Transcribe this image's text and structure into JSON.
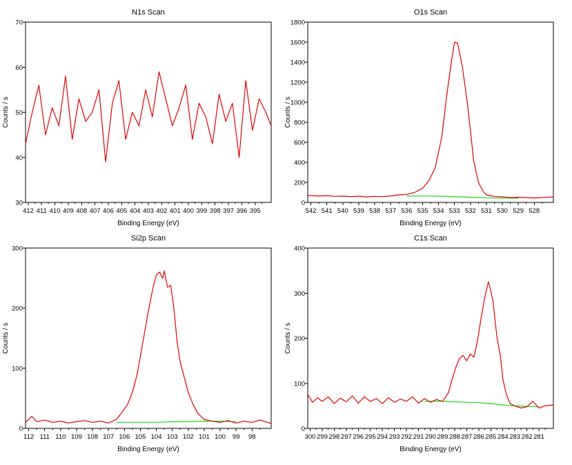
{
  "figure": {
    "panel_count": 4
  },
  "colors": {
    "data": "#e00000",
    "background": "#19d619",
    "axis": "#000000"
  },
  "chart_data": [
    {
      "type": "line",
      "title": "N1s Scan",
      "xlabel": "Binding Energy (eV)",
      "ylabel": "Counts / s",
      "xlim": [
        412.2,
        393.8
      ],
      "ylim": [
        30,
        70
      ],
      "xticks": [
        412,
        411,
        410,
        409,
        408,
        407,
        406,
        405,
        404,
        403,
        402,
        401,
        400,
        399,
        398,
        397,
        396,
        395
      ],
      "yticks": [
        30,
        40,
        50,
        60,
        70
      ],
      "series": [
        {
          "name": "data",
          "color": "#e00000",
          "x": [
            412.2,
            411.7,
            411.2,
            410.7,
            410.2,
            409.7,
            409.2,
            408.7,
            408.2,
            407.7,
            407.2,
            406.7,
            406.2,
            405.7,
            405.2,
            404.7,
            404.2,
            403.7,
            403.2,
            402.7,
            402.2,
            401.7,
            401.2,
            400.7,
            400.2,
            399.7,
            399.2,
            398.7,
            398.2,
            397.7,
            397.2,
            396.7,
            396.2,
            395.7,
            395.2,
            394.7,
            394.2,
            393.8
          ],
          "y": [
            43,
            50,
            56,
            45,
            51,
            47,
            58,
            44,
            53,
            48,
            50,
            55,
            39,
            52,
            57,
            44,
            50,
            47,
            55,
            49,
            59,
            53,
            47,
            51,
            56,
            44,
            52,
            49,
            43,
            54,
            48,
            52,
            40,
            57,
            46,
            53,
            50,
            47
          ]
        }
      ]
    },
    {
      "type": "line",
      "title": "O1s Scan",
      "xlabel": "Binding Energy (eV)",
      "ylabel": "Counts / s",
      "xlim": [
        542.2,
        526.8
      ],
      "ylim": [
        0,
        1800
      ],
      "xticks": [
        542,
        541,
        540,
        539,
        538,
        537,
        536,
        535,
        534,
        533,
        532,
        531,
        530,
        529,
        528
      ],
      "yticks": [
        0,
        200,
        400,
        600,
        800,
        1000,
        1200,
        1400,
        1600,
        1800
      ],
      "series": [
        {
          "name": "data",
          "color": "#e00000",
          "x": [
            542.2,
            541.5,
            541.0,
            540.5,
            540.0,
            539.5,
            539.0,
            538.5,
            538.0,
            537.5,
            537.0,
            536.5,
            536.0,
            535.5,
            535.0,
            534.6,
            534.2,
            533.8,
            533.5,
            533.2,
            533.0,
            532.8,
            532.5,
            532.2,
            532.0,
            531.8,
            531.5,
            531.2,
            531.0,
            530.5,
            530.0,
            529.5,
            529.0,
            528.5,
            528.0,
            527.5,
            526.8
          ],
          "y": [
            70,
            65,
            68,
            60,
            63,
            58,
            62,
            55,
            60,
            57,
            65,
            75,
            80,
            100,
            140,
            220,
            350,
            650,
            1050,
            1400,
            1600,
            1590,
            1350,
            1000,
            720,
            420,
            200,
            110,
            75,
            60,
            55,
            50,
            52,
            48,
            45,
            50,
            55
          ]
        },
        {
          "name": "background",
          "color": "#19d619",
          "x": [
            536.0,
            535.0,
            534.0,
            533.0,
            532.0,
            531.0,
            530.0,
            529.0
          ],
          "y": [
            65,
            64,
            62,
            58,
            52,
            46,
            43,
            42
          ]
        }
      ]
    },
    {
      "type": "line",
      "title": "Si2p Scan",
      "xlabel": "Binding Energy (eV)",
      "ylabel": "Counts / s",
      "xlim": [
        112.2,
        96.8
      ],
      "ylim": [
        0,
        300
      ],
      "xticks": [
        112,
        111,
        110,
        109,
        108,
        107,
        106,
        105,
        104,
        103,
        102,
        101,
        100,
        99,
        98
      ],
      "yticks": [
        0,
        100,
        200,
        300
      ],
      "series": [
        {
          "name": "data",
          "color": "#e00000",
          "x": [
            112.2,
            111.8,
            111.5,
            111.0,
            110.5,
            110.0,
            109.5,
            109.0,
            108.5,
            108.0,
            107.5,
            107.0,
            106.5,
            106.2,
            105.8,
            105.5,
            105.2,
            105.0,
            104.8,
            104.5,
            104.2,
            104.0,
            103.8,
            103.6,
            103.5,
            103.3,
            103.1,
            102.9,
            102.7,
            102.5,
            102.2,
            102.0,
            101.7,
            101.4,
            101.0,
            100.5,
            100.0,
            99.5,
            99.0,
            98.5,
            98.0,
            97.5,
            96.8
          ],
          "y": [
            10,
            20,
            11,
            14,
            10,
            12,
            9,
            11,
            13,
            10,
            12,
            9,
            15,
            25,
            40,
            60,
            90,
            120,
            150,
            195,
            235,
            255,
            260,
            250,
            262,
            235,
            238,
            200,
            145,
            110,
            80,
            60,
            40,
            25,
            15,
            12,
            10,
            13,
            9,
            12,
            10,
            14,
            8
          ]
        },
        {
          "name": "background",
          "color": "#19d619",
          "x": [
            106.5,
            105.0,
            104.0,
            103.0,
            102.0,
            101.0,
            100.0,
            99.0
          ],
          "y": [
            10,
            10,
            10,
            11,
            11,
            12,
            12,
            11
          ]
        }
      ]
    },
    {
      "type": "line",
      "title": "C1s Scan",
      "xlabel": "Binding Energy (eV)",
      "ylabel": "Counts / s",
      "xlim": [
        300.2,
        279.8
      ],
      "ylim": [
        0,
        400
      ],
      "xticks": [
        300,
        299,
        298,
        297,
        296,
        295,
        294,
        293,
        292,
        291,
        290,
        289,
        288,
        287,
        286,
        285,
        284,
        283,
        282,
        281
      ],
      "yticks": [
        0,
        100,
        200,
        300,
        400
      ],
      "series": [
        {
          "name": "data",
          "color": "#e00000",
          "x": [
            300.2,
            299.8,
            299.4,
            299.0,
            298.5,
            298.0,
            297.5,
            297.0,
            296.5,
            296.0,
            295.5,
            295.0,
            294.5,
            294.0,
            293.5,
            293.0,
            292.5,
            292.0,
            291.5,
            291.0,
            290.5,
            290.0,
            289.5,
            289.0,
            288.5,
            288.2,
            287.9,
            287.6,
            287.3,
            287.0,
            286.7,
            286.4,
            286.1,
            285.8,
            285.5,
            285.2,
            285.0,
            284.8,
            284.5,
            284.2,
            284.0,
            283.7,
            283.4,
            283.0,
            282.5,
            282.0,
            281.5,
            281.0,
            280.5,
            279.8
          ],
          "y": [
            75,
            58,
            68,
            60,
            70,
            55,
            67,
            59,
            72,
            56,
            70,
            60,
            66,
            55,
            68,
            58,
            65,
            60,
            70,
            56,
            66,
            58,
            64,
            60,
            80,
            110,
            135,
            155,
            162,
            150,
            165,
            158,
            195,
            245,
            290,
            325,
            305,
            280,
            205,
            160,
            110,
            75,
            55,
            50,
            45,
            48,
            60,
            45,
            50,
            52
          ]
        },
        {
          "name": "background",
          "color": "#19d619",
          "x": [
            290.5,
            289.0,
            288.0,
            287.0,
            286.0,
            285.0,
            284.0,
            283.0,
            282.0,
            281.0
          ],
          "y": [
            60,
            60,
            59,
            58,
            57,
            55,
            52,
            50,
            49,
            48
          ]
        }
      ]
    }
  ]
}
